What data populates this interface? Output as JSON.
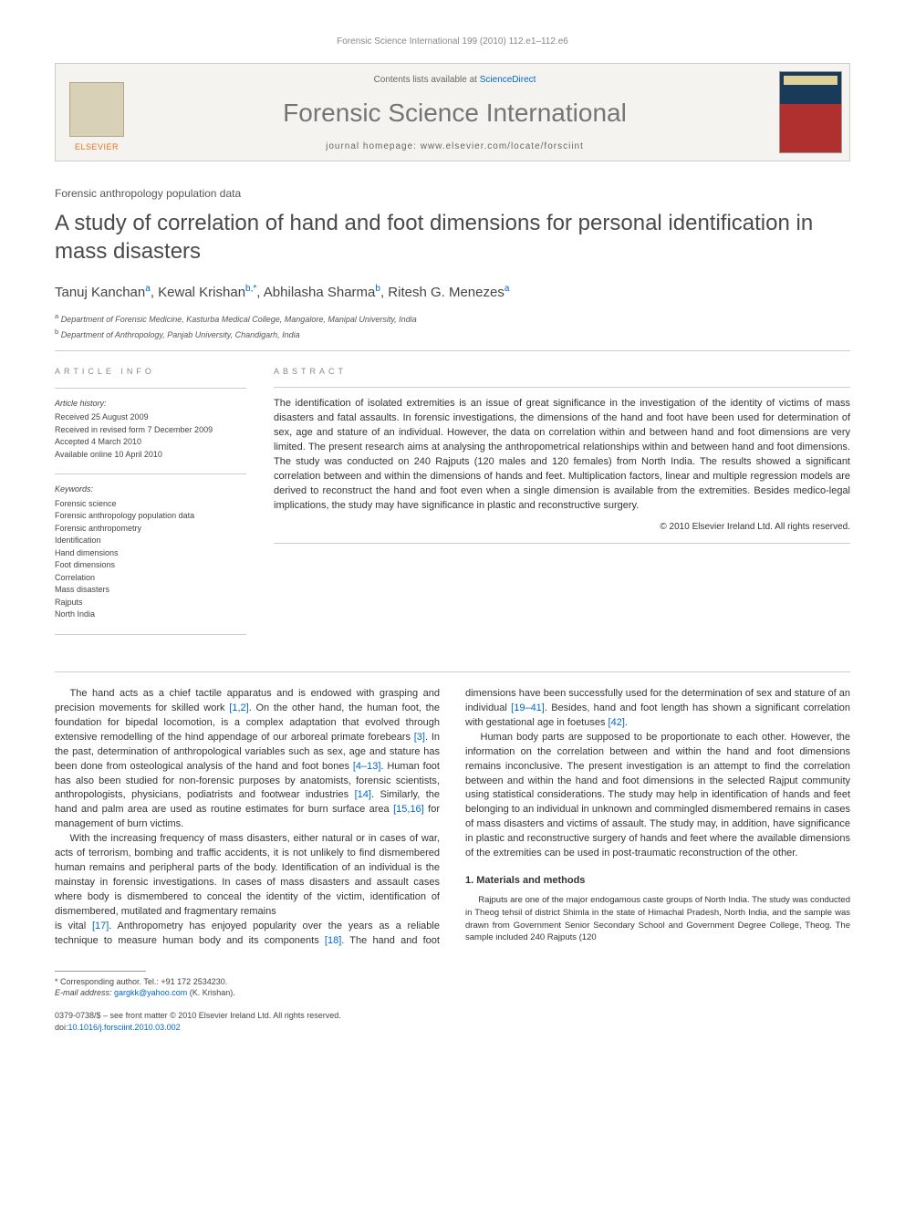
{
  "running_head": "Forensic Science International 199 (2010) 112.e1–112.e6",
  "masthead": {
    "contents_prefix": "Contents lists available at ",
    "sciencedirect": "ScienceDirect",
    "journal_name": "Forensic Science International",
    "homepage_prefix": "journal homepage: ",
    "homepage": "www.elsevier.com/locate/forsciint",
    "publisher": "ELSEVIER"
  },
  "article_type": "Forensic anthropology population data",
  "title": "A study of correlation of hand and foot dimensions for personal identification in mass disasters",
  "authors": [
    {
      "name": "Tanuj Kanchan",
      "aff": "a"
    },
    {
      "name": "Kewal Krishan",
      "aff": "b,*"
    },
    {
      "name": "Abhilasha Sharma",
      "aff": "b"
    },
    {
      "name": "Ritesh G. Menezes",
      "aff": "a"
    }
  ],
  "affiliations": {
    "a": "Department of Forensic Medicine, Kasturba Medical College, Mangalore, Manipal University, India",
    "b": "Department of Anthropology, Panjab University, Chandigarh, India"
  },
  "info": {
    "heading": "ARTICLE INFO",
    "history_label": "Article history:",
    "received": "Received 25 August 2009",
    "revised": "Received in revised form 7 December 2009",
    "accepted": "Accepted 4 March 2010",
    "online": "Available online 10 April 2010",
    "keywords_label": "Keywords:",
    "keywords": [
      "Forensic science",
      "Forensic anthropology population data",
      "Forensic anthropometry",
      "Identification",
      "Hand dimensions",
      "Foot dimensions",
      "Correlation",
      "Mass disasters",
      "Rajputs",
      "North India"
    ]
  },
  "abstract": {
    "heading": "ABSTRACT",
    "text": "The identification of isolated extremities is an issue of great significance in the investigation of the identity of victims of mass disasters and fatal assaults. In forensic investigations, the dimensions of the hand and foot have been used for determination of sex, age and stature of an individual. However, the data on correlation within and between hand and foot dimensions are very limited. The present research aims at analysing the anthropometrical relationships within and between hand and foot dimensions. The study was conducted on 240 Rajputs (120 males and 120 females) from North India. The results showed a significant correlation between and within the dimensions of hands and feet. Multiplication factors, linear and multiple regression models are derived to reconstruct the hand and foot even when a single dimension is available from the extremities. Besides medico-legal implications, the study may have significance in plastic and reconstructive surgery.",
    "copyright": "© 2010 Elsevier Ireland Ltd. All rights reserved."
  },
  "body": {
    "p1a": "The hand acts as a chief tactile apparatus and is endowed with grasping and precision movements for skilled work ",
    "r1": "[1,2]",
    "p1b": ". On the other hand, the human foot, the foundation for bipedal locomotion, is a complex adaptation that evolved through extensive remodelling of the hind appendage of our arboreal primate forebears ",
    "r3": "[3]",
    "p1c": ". In the past, determination of anthropological variables such as sex, age and stature has been done from osteological analysis of the hand and foot bones ",
    "r4": "[4–13]",
    "p1d": ". Human foot has also been studied for non-forensic purposes by anatomists, forensic scientists, anthropologists, physicians, podiatrists and footwear industries ",
    "r14": "[14]",
    "p1e": ". Similarly, the hand and palm area are used as routine estimates for burn surface area ",
    "r15": "[15,16]",
    "p1f": " for management of burn victims.",
    "p2": "With the increasing frequency of mass disasters, either natural or in cases of war, acts of terrorism, bombing and traffic accidents, it is not unlikely to find dismembered human remains and peripheral parts of the body. Identification of an individual is the mainstay in forensic investigations. In cases of mass disasters and assault cases where body is dismembered to conceal the identity of the victim, identification of dismembered, mutilated and fragmentary remains",
    "p3a": "is vital ",
    "r17": "[17]",
    "p3b": ". Anthropometry has enjoyed popularity over the years as a reliable technique to measure human body and its components ",
    "r18": "[18]",
    "p3c": ". The hand and foot dimensions have been successfully used for the determination of sex and stature of an individual ",
    "r19": "[19–41]",
    "p3d": ". Besides, hand and foot length has shown a significant correlation with gestational age in foetuses ",
    "r42": "[42]",
    "p3e": ".",
    "p4": "Human body parts are supposed to be proportionate to each other. However, the information on the correlation between and within the hand and foot dimensions remains inconclusive. The present investigation is an attempt to find the correlation between and within the hand and foot dimensions in the selected Rajput community using statistical considerations. The study may help in identification of hands and feet belonging to an individual in unknown and commingled dismembered remains in cases of mass disasters and victims of assault. The study may, in addition, have significance in plastic and reconstructive surgery of hands and feet where the available dimensions of the extremities can be used in post-traumatic reconstruction of the other.",
    "h_methods": "1. Materials and methods",
    "p5": "Rajputs are one of the major endogamous caste groups of North India. The study was conducted in Theog tehsil of district Shimla in the state of Himachal Pradesh, North India, and the sample was drawn from Government Senior Secondary School and Government Degree College, Theog. The sample included 240 Rajputs (120"
  },
  "footer": {
    "corr_label": "* Corresponding author. Tel.: +91 172 2534230.",
    "email_label": "E-mail address: ",
    "email": "gargkk@yahoo.com",
    "email_person": " (K. Krishan).",
    "issn_line": "0379-0738/$ – see front matter © 2010 Elsevier Ireland Ltd. All rights reserved.",
    "doi_label": "doi:",
    "doi": "10.1016/j.forsciint.2010.03.002"
  }
}
